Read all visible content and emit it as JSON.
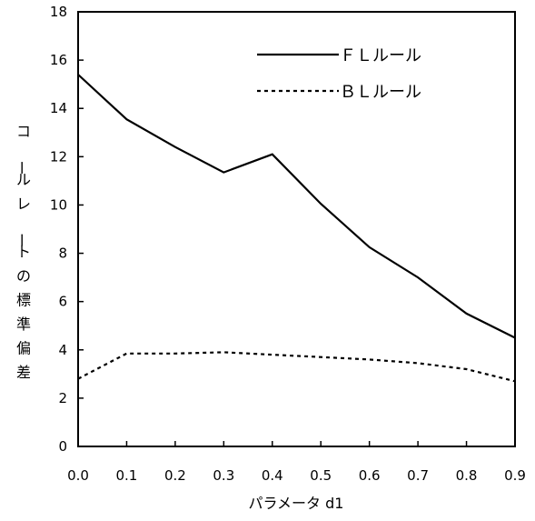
{
  "chart_data": {
    "type": "line",
    "title": "",
    "xlabel": "パラメータ d1",
    "ylabel": "コールレートの標準偏差",
    "x": [
      0.0,
      0.1,
      0.2,
      0.3,
      0.4,
      0.5,
      0.6,
      0.7,
      0.8,
      0.9
    ],
    "xtick_labels": [
      "0.0",
      "0.1",
      "0.2",
      "0.3",
      "0.4",
      "0.5",
      "0.6",
      "0.7",
      "0.8",
      "0.9"
    ],
    "xlim": [
      0.0,
      0.9
    ],
    "ylim": [
      0,
      18
    ],
    "yticks": [
      0,
      2,
      4,
      6,
      8,
      10,
      12,
      14,
      16,
      18
    ],
    "grid": false,
    "legend_position": "top-right",
    "series": [
      {
        "name": "ＦＬルール",
        "style": "solid",
        "color": "#000000",
        "values": [
          15.4,
          13.55,
          12.4,
          11.35,
          12.1,
          10.05,
          8.25,
          7.0,
          5.5,
          4.5
        ]
      },
      {
        "name": "ＢＬルール",
        "style": "dashed",
        "color": "#000000",
        "values": [
          2.8,
          3.85,
          3.85,
          3.9,
          3.8,
          3.7,
          3.6,
          3.45,
          3.2,
          2.7
        ]
      }
    ]
  }
}
